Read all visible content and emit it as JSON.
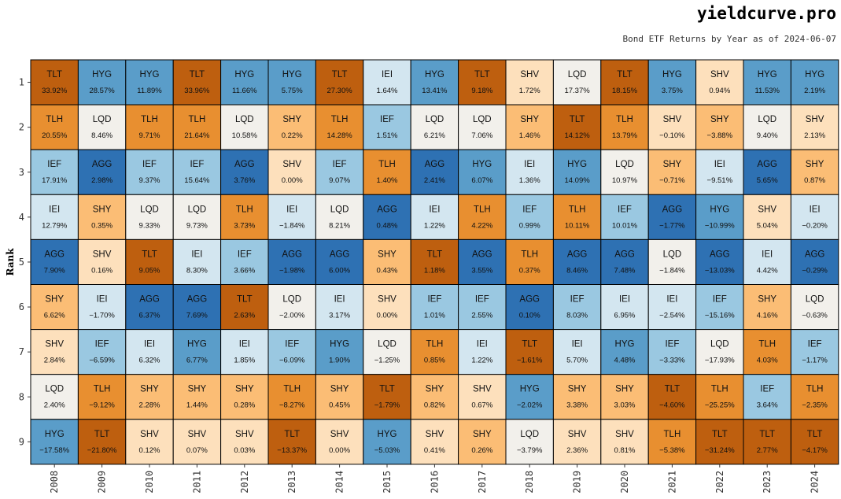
{
  "header": {
    "brand": "yieldcurve.pro",
    "subtitle": "Bond ETF Returns by Year as of 2024-06-07"
  },
  "colors": {
    "AGG": "#2e71b3",
    "HYG": "#5a9dc9",
    "IEF": "#9ac8e1",
    "IEI": "#d3e6f0",
    "LQD": "#f2f0eb",
    "SHV": "#fde0bc",
    "SHY": "#fbbd75",
    "TLH": "#e88f30",
    "TLT": "#be5f0f"
  },
  "chart_data": {
    "type": "table",
    "ylabel": "Rank",
    "ranks": [
      "1",
      "2",
      "3",
      "4",
      "5",
      "6",
      "7",
      "8",
      "9"
    ],
    "years": [
      "2008",
      "2009",
      "2010",
      "2011",
      "2012",
      "2013",
      "2014",
      "2015",
      "2016",
      "2017",
      "2018",
      "2019",
      "2020",
      "2021",
      "2022",
      "2023",
      "2024"
    ],
    "columns": [
      {
        "year": "2008",
        "cells": [
          {
            "t": "TLT",
            "v": "33.92%"
          },
          {
            "t": "TLH",
            "v": "20.55%"
          },
          {
            "t": "IEF",
            "v": "17.91%"
          },
          {
            "t": "IEI",
            "v": "12.79%"
          },
          {
            "t": "AGG",
            "v": "7.90%"
          },
          {
            "t": "SHY",
            "v": "6.62%"
          },
          {
            "t": "SHV",
            "v": "2.84%"
          },
          {
            "t": "LQD",
            "v": "2.40%"
          },
          {
            "t": "HYG",
            "v": "−17.58%"
          }
        ]
      },
      {
        "year": "2009",
        "cells": [
          {
            "t": "HYG",
            "v": "28.57%"
          },
          {
            "t": "LQD",
            "v": "8.46%"
          },
          {
            "t": "AGG",
            "v": "2.98%"
          },
          {
            "t": "SHY",
            "v": "0.35%"
          },
          {
            "t": "SHV",
            "v": "0.16%"
          },
          {
            "t": "IEI",
            "v": "−1.70%"
          },
          {
            "t": "IEF",
            "v": "−6.59%"
          },
          {
            "t": "TLH",
            "v": "−9.12%"
          },
          {
            "t": "TLT",
            "v": "−21.80%"
          }
        ]
      },
      {
        "year": "2010",
        "cells": [
          {
            "t": "HYG",
            "v": "11.89%"
          },
          {
            "t": "TLH",
            "v": "9.71%"
          },
          {
            "t": "IEF",
            "v": "9.37%"
          },
          {
            "t": "LQD",
            "v": "9.33%"
          },
          {
            "t": "TLT",
            "v": "9.05%"
          },
          {
            "t": "AGG",
            "v": "6.37%"
          },
          {
            "t": "IEI",
            "v": "6.32%"
          },
          {
            "t": "SHY",
            "v": "2.28%"
          },
          {
            "t": "SHV",
            "v": "0.12%"
          }
        ]
      },
      {
        "year": "2011",
        "cells": [
          {
            "t": "TLT",
            "v": "33.96%"
          },
          {
            "t": "TLH",
            "v": "21.64%"
          },
          {
            "t": "IEF",
            "v": "15.64%"
          },
          {
            "t": "LQD",
            "v": "9.73%"
          },
          {
            "t": "IEI",
            "v": "8.30%"
          },
          {
            "t": "AGG",
            "v": "7.69%"
          },
          {
            "t": "HYG",
            "v": "6.77%"
          },
          {
            "t": "SHY",
            "v": "1.44%"
          },
          {
            "t": "SHV",
            "v": "0.07%"
          }
        ]
      },
      {
        "year": "2012",
        "cells": [
          {
            "t": "HYG",
            "v": "11.66%"
          },
          {
            "t": "LQD",
            "v": "10.58%"
          },
          {
            "t": "AGG",
            "v": "3.76%"
          },
          {
            "t": "TLH",
            "v": "3.73%"
          },
          {
            "t": "IEF",
            "v": "3.66%"
          },
          {
            "t": "TLT",
            "v": "2.63%"
          },
          {
            "t": "IEI",
            "v": "1.85%"
          },
          {
            "t": "SHY",
            "v": "0.28%"
          },
          {
            "t": "SHV",
            "v": "0.03%"
          }
        ]
      },
      {
        "year": "2013",
        "cells": [
          {
            "t": "HYG",
            "v": "5.75%"
          },
          {
            "t": "SHY",
            "v": "0.22%"
          },
          {
            "t": "SHV",
            "v": "0.00%"
          },
          {
            "t": "IEI",
            "v": "−1.84%"
          },
          {
            "t": "AGG",
            "v": "−1.98%"
          },
          {
            "t": "LQD",
            "v": "−2.00%"
          },
          {
            "t": "IEF",
            "v": "−6.09%"
          },
          {
            "t": "TLH",
            "v": "−8.27%"
          },
          {
            "t": "TLT",
            "v": "−13.37%"
          }
        ]
      },
      {
        "year": "2014",
        "cells": [
          {
            "t": "TLT",
            "v": "27.30%"
          },
          {
            "t": "TLH",
            "v": "14.28%"
          },
          {
            "t": "IEF",
            "v": "9.07%"
          },
          {
            "t": "LQD",
            "v": "8.21%"
          },
          {
            "t": "AGG",
            "v": "6.00%"
          },
          {
            "t": "IEI",
            "v": "3.17%"
          },
          {
            "t": "HYG",
            "v": "1.90%"
          },
          {
            "t": "SHY",
            "v": "0.45%"
          },
          {
            "t": "SHV",
            "v": "0.00%"
          }
        ]
      },
      {
        "year": "2015",
        "cells": [
          {
            "t": "IEI",
            "v": "1.64%"
          },
          {
            "t": "IEF",
            "v": "1.51%"
          },
          {
            "t": "TLH",
            "v": "1.40%"
          },
          {
            "t": "AGG",
            "v": "0.48%"
          },
          {
            "t": "SHY",
            "v": "0.43%"
          },
          {
            "t": "SHV",
            "v": "0.00%"
          },
          {
            "t": "LQD",
            "v": "−1.25%"
          },
          {
            "t": "TLT",
            "v": "−1.79%"
          },
          {
            "t": "HYG",
            "v": "−5.03%"
          }
        ]
      },
      {
        "year": "2016",
        "cells": [
          {
            "t": "HYG",
            "v": "13.41%"
          },
          {
            "t": "LQD",
            "v": "6.21%"
          },
          {
            "t": "AGG",
            "v": "2.41%"
          },
          {
            "t": "IEI",
            "v": "1.22%"
          },
          {
            "t": "TLT",
            "v": "1.18%"
          },
          {
            "t": "IEF",
            "v": "1.01%"
          },
          {
            "t": "TLH",
            "v": "0.85%"
          },
          {
            "t": "SHY",
            "v": "0.82%"
          },
          {
            "t": "SHV",
            "v": "0.41%"
          }
        ]
      },
      {
        "year": "2017",
        "cells": [
          {
            "t": "TLT",
            "v": "9.18%"
          },
          {
            "t": "LQD",
            "v": "7.06%"
          },
          {
            "t": "HYG",
            "v": "6.07%"
          },
          {
            "t": "TLH",
            "v": "4.22%"
          },
          {
            "t": "AGG",
            "v": "3.55%"
          },
          {
            "t": "IEF",
            "v": "2.55%"
          },
          {
            "t": "IEI",
            "v": "1.22%"
          },
          {
            "t": "SHV",
            "v": "0.67%"
          },
          {
            "t": "SHY",
            "v": "0.26%"
          }
        ]
      },
      {
        "year": "2018",
        "cells": [
          {
            "t": "SHV",
            "v": "1.72%"
          },
          {
            "t": "SHY",
            "v": "1.46%"
          },
          {
            "t": "IEI",
            "v": "1.36%"
          },
          {
            "t": "IEF",
            "v": "0.99%"
          },
          {
            "t": "TLH",
            "v": "0.37%"
          },
          {
            "t": "AGG",
            "v": "0.10%"
          },
          {
            "t": "TLT",
            "v": "−1.61%"
          },
          {
            "t": "HYG",
            "v": "−2.02%"
          },
          {
            "t": "LQD",
            "v": "−3.79%"
          }
        ]
      },
      {
        "year": "2019",
        "cells": [
          {
            "t": "LQD",
            "v": "17.37%"
          },
          {
            "t": "TLT",
            "v": "14.12%"
          },
          {
            "t": "HYG",
            "v": "14.09%"
          },
          {
            "t": "TLH",
            "v": "10.11%"
          },
          {
            "t": "AGG",
            "v": "8.46%"
          },
          {
            "t": "IEF",
            "v": "8.03%"
          },
          {
            "t": "IEI",
            "v": "5.70%"
          },
          {
            "t": "SHY",
            "v": "3.38%"
          },
          {
            "t": "SHV",
            "v": "2.36%"
          }
        ]
      },
      {
        "year": "2020",
        "cells": [
          {
            "t": "TLT",
            "v": "18.15%"
          },
          {
            "t": "TLH",
            "v": "13.79%"
          },
          {
            "t": "LQD",
            "v": "10.97%"
          },
          {
            "t": "IEF",
            "v": "10.01%"
          },
          {
            "t": "AGG",
            "v": "7.48%"
          },
          {
            "t": "IEI",
            "v": "6.95%"
          },
          {
            "t": "HYG",
            "v": "4.48%"
          },
          {
            "t": "SHY",
            "v": "3.03%"
          },
          {
            "t": "SHV",
            "v": "0.81%"
          }
        ]
      },
      {
        "year": "2021",
        "cells": [
          {
            "t": "HYG",
            "v": "3.75%"
          },
          {
            "t": "SHV",
            "v": "−0.10%"
          },
          {
            "t": "SHY",
            "v": "−0.71%"
          },
          {
            "t": "AGG",
            "v": "−1.77%"
          },
          {
            "t": "LQD",
            "v": "−1.84%"
          },
          {
            "t": "IEI",
            "v": "−2.54%"
          },
          {
            "t": "IEF",
            "v": "−3.33%"
          },
          {
            "t": "TLT",
            "v": "−4.60%"
          },
          {
            "t": "TLH",
            "v": "−5.38%"
          }
        ]
      },
      {
        "year": "2022",
        "cells": [
          {
            "t": "SHV",
            "v": "0.94%"
          },
          {
            "t": "SHY",
            "v": "−3.88%"
          },
          {
            "t": "IEI",
            "v": "−9.51%"
          },
          {
            "t": "HYG",
            "v": "−10.99%"
          },
          {
            "t": "AGG",
            "v": "−13.03%"
          },
          {
            "t": "IEF",
            "v": "−15.16%"
          },
          {
            "t": "LQD",
            "v": "−17.93%"
          },
          {
            "t": "TLH",
            "v": "−25.25%"
          },
          {
            "t": "TLT",
            "v": "−31.24%"
          }
        ]
      },
      {
        "year": "2023",
        "cells": [
          {
            "t": "HYG",
            "v": "11.53%"
          },
          {
            "t": "LQD",
            "v": "9.40%"
          },
          {
            "t": "AGG",
            "v": "5.65%"
          },
          {
            "t": "SHV",
            "v": "5.04%"
          },
          {
            "t": "IEI",
            "v": "4.42%"
          },
          {
            "t": "SHY",
            "v": "4.16%"
          },
          {
            "t": "TLH",
            "v": "4.03%"
          },
          {
            "t": "IEF",
            "v": "3.64%"
          },
          {
            "t": "TLT",
            "v": "2.77%"
          }
        ]
      },
      {
        "year": "2024",
        "cells": [
          {
            "t": "HYG",
            "v": "2.19%"
          },
          {
            "t": "SHV",
            "v": "2.13%"
          },
          {
            "t": "SHY",
            "v": "0.87%"
          },
          {
            "t": "IEI",
            "v": "−0.20%"
          },
          {
            "t": "AGG",
            "v": "−0.29%"
          },
          {
            "t": "LQD",
            "v": "−0.63%"
          },
          {
            "t": "IEF",
            "v": "−1.17%"
          },
          {
            "t": "TLH",
            "v": "−2.35%"
          },
          {
            "t": "TLT",
            "v": "−4.17%"
          }
        ]
      }
    ]
  }
}
